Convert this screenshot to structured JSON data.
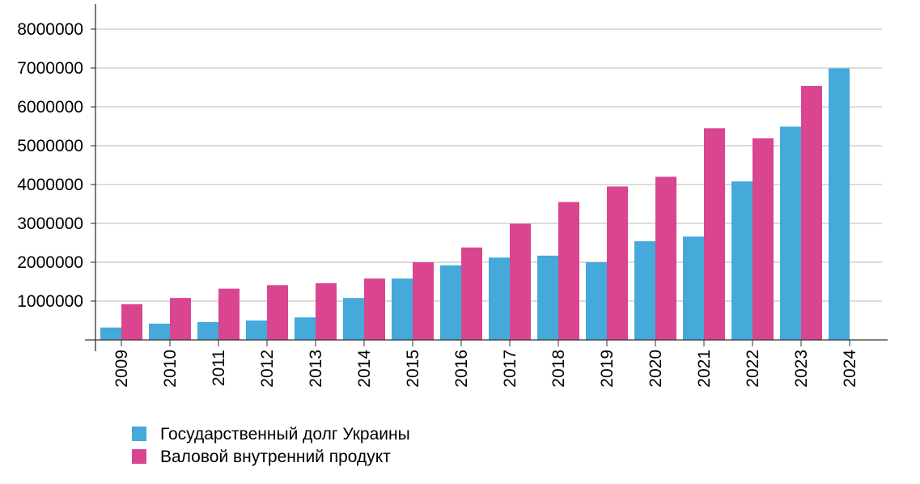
{
  "chart_data": {
    "type": "bar",
    "categories": [
      "2009",
      "2010",
      "2011",
      "2012",
      "2013",
      "2014",
      "2015",
      "2016",
      "2017",
      "2018",
      "2019",
      "2020",
      "2021",
      "2022",
      "2023",
      "2024"
    ],
    "series": [
      {
        "name": "Государственный долг Украины",
        "color": "#45a9da",
        "values": [
          320000,
          420000,
          460000,
          500000,
          580000,
          1080000,
          1580000,
          1920000,
          2120000,
          2170000,
          2000000,
          2540000,
          2660000,
          4080000,
          5490000,
          6990000
        ]
      },
      {
        "name": "Валовой внутренний продукт",
        "color": "#d9458f",
        "values": [
          920000,
          1080000,
          1320000,
          1410000,
          1460000,
          1580000,
          2000000,
          2380000,
          2990000,
          3550000,
          3950000,
          4200000,
          5450000,
          5190000,
          6540000,
          null
        ]
      }
    ],
    "y_ticks": [
      "1000000",
      "2000000",
      "3000000",
      "4000000",
      "5000000",
      "6000000",
      "7000000",
      "8000000"
    ],
    "ylim": [
      0,
      8800000
    ],
    "grid": true,
    "legend": "bottom-left",
    "title": "",
    "xlabel": "",
    "ylabel": ""
  }
}
